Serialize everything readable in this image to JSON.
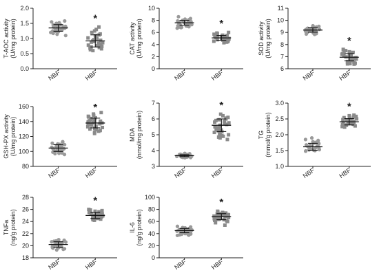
{
  "colors": {
    "nbf": "#9a9a9a",
    "hbf": "#8a8a8a",
    "axis": "#222222",
    "errorbar": "#111111"
  },
  "chart_data": [
    {
      "type": "scatter",
      "ylabel": [
        "T-AOC activity",
        "(U/mg protein)"
      ],
      "categories": [
        "NBF",
        "HBF"
      ],
      "ylim": [
        0.0,
        2.0
      ],
      "yticks": [
        0.0,
        0.5,
        1.0,
        1.5,
        2.0
      ],
      "yticklabels": [
        "0.0",
        "0.5",
        "1.0",
        "1.5",
        "2.0"
      ],
      "significance": [
        "",
        "*"
      ],
      "series": [
        {
          "values": [
            1.58,
            1.55,
            1.52,
            1.5,
            1.48,
            1.46,
            1.45,
            1.43,
            1.42,
            1.4,
            1.39,
            1.38,
            1.37,
            1.36,
            1.35,
            1.34,
            1.33,
            1.32,
            1.31,
            1.3,
            1.29,
            1.28,
            1.27,
            1.25,
            1.24,
            1.22,
            1.2,
            1.17,
            1.14,
            1.1
          ],
          "mean": 1.35,
          "sd": 0.11
        },
        {
          "values": [
            1.38,
            1.3,
            1.25,
            1.2,
            1.15,
            1.12,
            1.1,
            1.07,
            1.05,
            1.02,
            1.0,
            0.98,
            0.96,
            0.94,
            0.92,
            0.9,
            0.88,
            0.86,
            0.84,
            0.82,
            0.8,
            0.78,
            0.76,
            0.74,
            0.72,
            0.7,
            0.68,
            0.66,
            0.63,
            0.6
          ],
          "mean": 0.92,
          "sd": 0.2
        }
      ]
    },
    {
      "type": "scatter",
      "ylabel": [
        "CAT activity",
        "(U/mg protein)"
      ],
      "categories": [
        "NBF",
        "HBF"
      ],
      "ylim": [
        0,
        10
      ],
      "yticks": [
        0,
        2,
        4,
        6,
        8,
        10
      ],
      "yticklabels": [
        "0",
        "2",
        "4",
        "6",
        "8",
        "10"
      ],
      "significance": [
        "",
        "*"
      ],
      "series": [
        {
          "values": [
            8.6,
            8.3,
            8.2,
            8.1,
            8.0,
            7.95,
            7.9,
            7.85,
            7.8,
            7.75,
            7.7,
            7.65,
            7.6,
            7.55,
            7.5,
            7.45,
            7.4,
            7.35,
            7.3,
            7.25,
            7.2,
            7.15,
            7.1,
            7.05,
            7.0,
            6.95,
            6.9,
            6.85,
            6.8,
            6.7
          ],
          "mean": 7.6,
          "sd": 0.4
        },
        {
          "values": [
            6.0,
            5.9,
            5.8,
            5.7,
            5.6,
            5.55,
            5.5,
            5.45,
            5.4,
            5.35,
            5.3,
            5.25,
            5.2,
            5.15,
            5.1,
            5.05,
            5.0,
            4.95,
            4.9,
            4.85,
            4.8,
            4.75,
            4.7,
            4.65,
            4.6,
            4.55,
            4.5,
            4.45,
            4.4,
            4.3
          ],
          "mean": 5.1,
          "sd": 0.4
        }
      ]
    },
    {
      "type": "scatter",
      "ylabel": [
        "SOD activity",
        "(U/mg protein)"
      ],
      "categories": [
        "NBF",
        "HBF"
      ],
      "ylim": [
        6,
        11
      ],
      "yticks": [
        6,
        7,
        8,
        9,
        10,
        11
      ],
      "yticklabels": [
        "6",
        "7",
        "8",
        "9",
        "10",
        "11"
      ],
      "significance": [
        "",
        "*"
      ],
      "series": [
        {
          "values": [
            9.55,
            9.5,
            9.45,
            9.42,
            9.4,
            9.38,
            9.35,
            9.33,
            9.3,
            9.28,
            9.26,
            9.24,
            9.22,
            9.2,
            9.18,
            9.16,
            9.14,
            9.12,
            9.1,
            9.08,
            9.06,
            9.04,
            9.02,
            9.0,
            8.98,
            8.95,
            8.92,
            8.9,
            8.87,
            8.84
          ],
          "mean": 9.2,
          "sd": 0.18
        },
        {
          "values": [
            7.6,
            7.5,
            7.45,
            7.4,
            7.35,
            7.3,
            7.25,
            7.2,
            7.15,
            7.1,
            7.06,
            7.02,
            6.98,
            6.95,
            6.92,
            6.88,
            6.84,
            6.8,
            6.76,
            6.72,
            6.68,
            6.64,
            6.6,
            6.56,
            6.52,
            6.48,
            6.45,
            6.42,
            6.4,
            6.38
          ],
          "mean": 6.95,
          "sd": 0.3
        }
      ]
    },
    {
      "type": "scatter",
      "ylabel": [
        "GSH-PX activity",
        "(U/mg protein)"
      ],
      "categories": [
        "NBF",
        "HBF"
      ],
      "ylim": [
        80,
        160
      ],
      "yticks": [
        80,
        100,
        120,
        140,
        160
      ],
      "yticklabels": [
        "80",
        "100",
        "120",
        "140",
        "160"
      ],
      "significance": [
        "",
        "*"
      ],
      "series": [
        {
          "values": [
            113,
            112,
            111,
            110,
            109.5,
            109,
            108.5,
            108,
            107,
            106.5,
            106,
            105.5,
            105,
            104.5,
            104,
            103.5,
            103,
            102.5,
            102,
            101.5,
            101,
            100.5,
            100,
            99.5,
            99,
            98.5,
            98,
            97.5,
            97,
            96
          ],
          "mean": 104.5,
          "sd": 4.5
        },
        {
          "values": [
            152,
            150,
            148,
            147,
            146,
            145,
            144,
            143,
            142,
            141,
            140.5,
            140,
            139.5,
            139,
            138.5,
            138,
            137.5,
            137,
            136,
            135,
            134,
            133,
            132,
            131,
            130,
            129,
            128,
            127,
            126,
            124
          ],
          "mean": 138,
          "sd": 6.5
        }
      ]
    },
    {
      "type": "scatter",
      "ylabel": [
        "MDA",
        "(nmol/mg protein)"
      ],
      "categories": [
        "NBF",
        "HBF"
      ],
      "ylim": [
        3,
        7
      ],
      "yticks": [
        3,
        4,
        5,
        6,
        7
      ],
      "yticklabels": [
        "3",
        "4",
        "5",
        "6",
        "7"
      ],
      "significance": [
        "",
        "*"
      ],
      "series": [
        {
          "values": [
            3.82,
            3.8,
            3.79,
            3.78,
            3.77,
            3.76,
            3.75,
            3.74,
            3.73,
            3.72,
            3.71,
            3.7,
            3.69,
            3.68,
            3.68,
            3.67,
            3.66,
            3.65,
            3.65,
            3.64,
            3.63,
            3.62,
            3.61,
            3.6,
            3.6,
            3.59,
            3.58,
            3.57,
            3.56,
            3.55
          ],
          "mean": 3.68,
          "sd": 0.06
        },
        {
          "values": [
            6.3,
            6.2,
            6.1,
            6.05,
            6.0,
            5.95,
            5.9,
            5.85,
            5.8,
            5.75,
            5.7,
            5.65,
            5.6,
            5.55,
            5.5,
            5.45,
            5.4,
            5.35,
            5.3,
            5.25,
            5.2,
            5.15,
            5.1,
            5.05,
            5.0,
            4.95,
            4.9,
            4.85,
            4.8,
            4.7
          ],
          "mean": 5.6,
          "sd": 0.4
        }
      ]
    },
    {
      "type": "scatter",
      "ylabel": [
        "TG",
        "(mmol/g protein)"
      ],
      "categories": [
        "NBF",
        "HBF"
      ],
      "ylim": [
        1.0,
        3.0
      ],
      "yticks": [
        1.0,
        1.5,
        2.0,
        2.5,
        3.0
      ],
      "yticklabels": [
        "1.0",
        "1.5",
        "2.0",
        "2.5",
        "3.0"
      ],
      "significance": [
        "",
        "*"
      ],
      "series": [
        {
          "values": [
            1.9,
            1.85,
            1.82,
            1.8,
            1.78,
            1.76,
            1.74,
            1.72,
            1.7,
            1.68,
            1.67,
            1.66,
            1.65,
            1.64,
            1.63,
            1.62,
            1.61,
            1.6,
            1.59,
            1.58,
            1.57,
            1.56,
            1.55,
            1.54,
            1.53,
            1.52,
            1.51,
            1.5,
            1.49,
            1.48
          ],
          "mean": 1.62,
          "sd": 0.11
        },
        {
          "values": [
            2.62,
            2.6,
            2.58,
            2.56,
            2.54,
            2.52,
            2.5,
            2.49,
            2.48,
            2.47,
            2.46,
            2.45,
            2.44,
            2.43,
            2.42,
            2.41,
            2.4,
            2.39,
            2.38,
            2.37,
            2.36,
            2.35,
            2.34,
            2.33,
            2.32,
            2.31,
            2.3,
            2.28,
            2.26,
            2.24
          ],
          "mean": 2.41,
          "sd": 0.1
        }
      ]
    },
    {
      "type": "scatter",
      "ylabel": [
        "TNFa",
        "(ng/g protein)"
      ],
      "categories": [
        "NBF",
        "HBF"
      ],
      "ylim": [
        18,
        28
      ],
      "yticks": [
        18,
        20,
        22,
        24,
        26,
        28
      ],
      "yticklabels": [
        "18",
        "20",
        "22",
        "24",
        "26",
        "28"
      ],
      "significance": [
        "",
        "*"
      ],
      "series": [
        {
          "values": [
            21.0,
            20.9,
            20.8,
            20.75,
            20.7,
            20.65,
            20.6,
            20.55,
            20.5,
            20.45,
            20.4,
            20.35,
            20.3,
            20.25,
            20.2,
            20.15,
            20.1,
            20.05,
            20.0,
            19.95,
            19.9,
            19.85,
            19.8,
            19.75,
            19.7,
            19.65,
            19.6,
            19.5,
            19.4,
            19.3
          ],
          "mean": 20.2,
          "sd": 0.45
        },
        {
          "values": [
            26.0,
            25.9,
            25.8,
            25.7,
            25.6,
            25.5,
            25.45,
            25.4,
            25.35,
            25.3,
            25.25,
            25.2,
            25.15,
            25.1,
            25.05,
            25.0,
            24.95,
            24.9,
            24.85,
            24.8,
            24.75,
            24.7,
            24.65,
            24.6,
            24.55,
            24.5,
            24.45,
            24.4,
            24.3,
            24.2
          ],
          "mean": 25.0,
          "sd": 0.5
        }
      ]
    },
    {
      "type": "scatter",
      "ylabel": [
        "IL-6",
        "(ng/g protein)"
      ],
      "categories": [
        "NBF",
        "HBF"
      ],
      "ylim": [
        0,
        100
      ],
      "yticks": [
        0,
        20,
        40,
        60,
        80,
        100
      ],
      "yticklabels": [
        "0",
        "20",
        "40",
        "60",
        "80",
        "100"
      ],
      "significance": [
        "",
        "*"
      ],
      "series": [
        {
          "values": [
            52,
            51,
            50,
            49.5,
            49,
            48.5,
            48,
            47.5,
            47,
            46.5,
            46,
            45.5,
            45,
            44.8,
            44.5,
            44,
            43.5,
            43,
            42.5,
            42,
            41.5,
            41,
            40.5,
            40,
            39.5,
            39,
            38.5,
            38,
            37.5,
            37
          ],
          "mean": 45,
          "sd": 3.5
        },
        {
          "values": [
            77,
            76,
            75,
            74,
            73,
            72.5,
            72,
            71.5,
            71,
            70.5,
            70,
            69.5,
            69,
            68.5,
            68,
            67.5,
            67,
            66.5,
            66,
            65.5,
            65,
            64.5,
            64,
            63.5,
            63,
            62,
            61,
            60,
            58,
            54
          ],
          "mean": 68,
          "sd": 5
        }
      ]
    }
  ]
}
